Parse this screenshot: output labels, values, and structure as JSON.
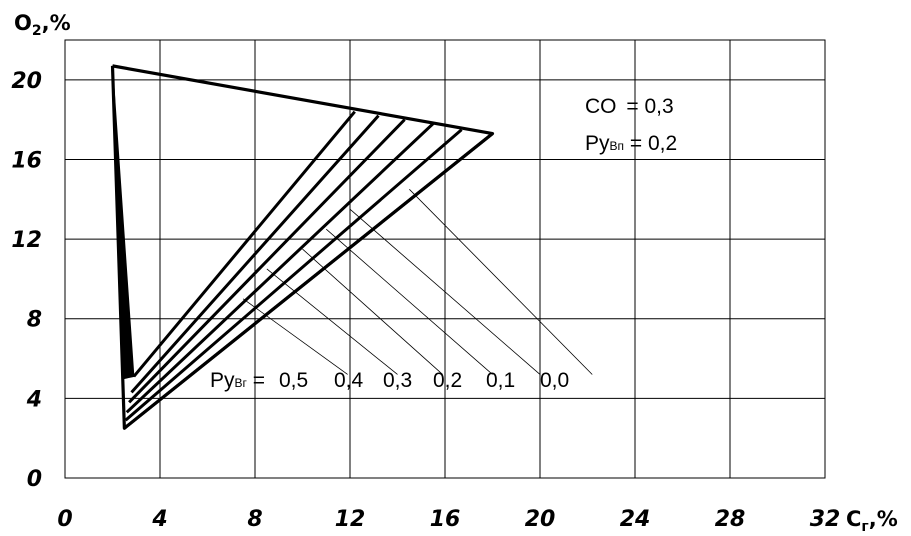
{
  "chart_data": {
    "type": "line",
    "xlabel": "C",
    "xlabel_sub": "г",
    "xlabel_unit": ",%",
    "ylabel": "O",
    "ylabel_sub": "2",
    "ylabel_unit": ",%",
    "xlim": [
      0,
      32
    ],
    "ylim": [
      0,
      22
    ],
    "xticks": [
      0,
      4,
      8,
      12,
      16,
      20,
      24,
      28,
      32
    ],
    "yticks": [
      0,
      4,
      8,
      12,
      16,
      20
    ],
    "xtick_labels": [
      "0",
      "4",
      "8",
      "12",
      "16",
      "20",
      "24",
      "28",
      "32"
    ],
    "ytick_labels": [
      "0",
      "4",
      "8",
      "12",
      "16",
      "20"
    ],
    "grid": true,
    "annotations": {
      "co_label": "CO",
      "co_value": "= 0,3",
      "ryvn_label": "Ру",
      "ryvn_sub": "Вп",
      "ryvn_value": "= 0,2",
      "ryvg_label": "Ру",
      "ryvg_sub": "Вг",
      "ryvg_prefix": "=",
      "ryvg_values": [
        "0,5",
        "0,4",
        "0,3",
        "0,2",
        "0,1",
        "0,0"
      ]
    },
    "outline": {
      "x": [
        2.0,
        18.0,
        2.5,
        2.0
      ],
      "y": [
        20.7,
        17.3,
        2.5,
        20.7
      ]
    },
    "series": [
      {
        "values_x": [
          2.9,
          12.2
        ],
        "values_y": [
          5.1,
          18.4
        ]
      },
      {
        "values_x": [
          2.8,
          13.2
        ],
        "values_y": [
          4.3,
          18.2
        ]
      },
      {
        "values_x": [
          2.7,
          14.3
        ],
        "values_y": [
          3.8,
          18.0
        ]
      },
      {
        "values_x": [
          2.6,
          15.5
        ],
        "values_y": [
          3.3,
          17.8
        ]
      },
      {
        "values_x": [
          2.55,
          16.7
        ],
        "values_y": [
          2.9,
          17.5
        ]
      },
      {
        "values_x": [
          2.5,
          18.0
        ],
        "values_y": [
          2.5,
          17.3
        ]
      }
    ],
    "leaders": [
      {
        "from_x": 7.5,
        "from_y": 9.0,
        "to_x": 11.9,
        "to_y": 5.2
      },
      {
        "from_x": 8.5,
        "from_y": 10.5,
        "to_x": 14.0,
        "to_y": 5.2
      },
      {
        "from_x": 10.0,
        "from_y": 11.5,
        "to_x": 15.9,
        "to_y": 5.2
      },
      {
        "from_x": 11.0,
        "from_y": 12.5,
        "to_x": 18.0,
        "to_y": 5.2
      },
      {
        "from_x": 12.0,
        "from_y": 13.5,
        "to_x": 20.0,
        "to_y": 5.2
      },
      {
        "from_x": 14.5,
        "from_y": 14.5,
        "to_x": 22.2,
        "to_y": 5.2
      }
    ],
    "wedge": {
      "x": [
        2.0,
        2.9,
        2.5
      ],
      "y": [
        20.7,
        5.1,
        5.0
      ]
    }
  }
}
